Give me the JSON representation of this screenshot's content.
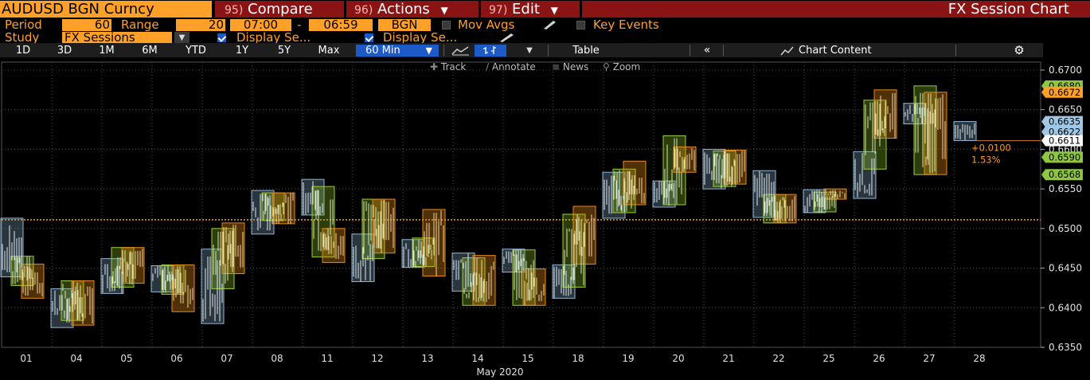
{
  "header": {
    "ticker": "AUDUSD BGN Curncy",
    "compare": {
      "num": "95)",
      "label": "Compare"
    },
    "actions": {
      "num": "96)",
      "label": "Actions"
    },
    "edit": {
      "num": "97)",
      "label": "Edit"
    },
    "title": "FX Session Chart"
  },
  "settings": {
    "period_label": "Period",
    "period_value": "60",
    "range_label": "Range",
    "range_value": "20",
    "time_start": "07:00",
    "time_dash": "-",
    "time_end": "06:59",
    "source": "BGN",
    "mov_avgs_label": "Mov Avgs",
    "key_events_label": "Key Events",
    "study_label": "Study",
    "study_value": "FX Sessions",
    "display_1": "Display Se...",
    "display_2": "Display Se..."
  },
  "range_buttons": [
    "1D",
    "3D",
    "1M",
    "6M",
    "YTD",
    "1Y",
    "5Y",
    "Max"
  ],
  "interval": "60 Min",
  "table_label": "Table",
  "chart_content_label": "Chart Content",
  "tools": {
    "track": "Track",
    "annotate": "Annotate",
    "news": "News",
    "zoom": "Zoom"
  },
  "colors": {
    "accent": "#ffa028",
    "header_red": "#8a1414",
    "active_blue": "#1c5ac8"
  },
  "chart_data": {
    "type": "candlestick-session",
    "title": "",
    "xlabel": "May 2020",
    "ylabel": "",
    "ylim": [
      0.635,
      0.671
    ],
    "y_ticks": [
      "0.6700",
      "0.6650",
      "0.6600",
      "0.6550",
      "0.6500",
      "0.6450",
      "0.6400",
      "0.6350"
    ],
    "x_ticks": [
      "01",
      "04",
      "05",
      "06",
      "07",
      "08",
      "11",
      "12",
      "13",
      "14",
      "15",
      "18",
      "19",
      "20",
      "21",
      "22",
      "25",
      "26",
      "27",
      "28"
    ],
    "reference_level": 0.6511,
    "last_price": "0.6611",
    "change": "+0.0100",
    "change_pct": "1.53%",
    "price_labels": [
      {
        "value": "0.6680",
        "kind": "green"
      },
      {
        "value": "0.6672",
        "kind": "orange"
      },
      {
        "value": "0.6635",
        "kind": "blue"
      },
      {
        "value": "0.6622",
        "kind": "blue"
      },
      {
        "value": "0.6611",
        "kind": "white"
      },
      {
        "value": "0.6590",
        "kind": "green"
      },
      {
        "value": "0.6568",
        "kind": "green"
      }
    ],
    "sessions": [
      {
        "day": "01",
        "s": "asia",
        "hi": 0.6513,
        "lo": 0.6439
      },
      {
        "day": "01",
        "s": "europe",
        "hi": 0.6465,
        "lo": 0.6428
      },
      {
        "day": "01",
        "s": "us",
        "hi": 0.6455,
        "lo": 0.6412
      },
      {
        "day": "04",
        "s": "asia",
        "hi": 0.6424,
        "lo": 0.6375
      },
      {
        "day": "04",
        "s": "europe",
        "hi": 0.6434,
        "lo": 0.6384
      },
      {
        "day": "04",
        "s": "us",
        "hi": 0.6434,
        "lo": 0.6378
      },
      {
        "day": "05",
        "s": "asia",
        "hi": 0.6462,
        "lo": 0.6418
      },
      {
        "day": "05",
        "s": "europe",
        "hi": 0.6476,
        "lo": 0.6426
      },
      {
        "day": "05",
        "s": "us",
        "hi": 0.6476,
        "lo": 0.6431
      },
      {
        "day": "06",
        "s": "asia",
        "hi": 0.6453,
        "lo": 0.642
      },
      {
        "day": "06",
        "s": "europe",
        "hi": 0.6454,
        "lo": 0.6417
      },
      {
        "day": "06",
        "s": "us",
        "hi": 0.6454,
        "lo": 0.6395
      },
      {
        "day": "07",
        "s": "asia",
        "hi": 0.6474,
        "lo": 0.638
      },
      {
        "day": "07",
        "s": "europe",
        "hi": 0.65,
        "lo": 0.6424
      },
      {
        "day": "07",
        "s": "us",
        "hi": 0.6507,
        "lo": 0.6443
      },
      {
        "day": "08",
        "s": "asia",
        "hi": 0.6548,
        "lo": 0.6493
      },
      {
        "day": "08",
        "s": "europe",
        "hi": 0.6545,
        "lo": 0.651
      },
      {
        "day": "08",
        "s": "us",
        "hi": 0.6545,
        "lo": 0.6506
      },
      {
        "day": "11",
        "s": "asia",
        "hi": 0.6562,
        "lo": 0.6517
      },
      {
        "day": "11",
        "s": "europe",
        "hi": 0.6553,
        "lo": 0.6464
      },
      {
        "day": "11",
        "s": "us",
        "hi": 0.65,
        "lo": 0.6457
      },
      {
        "day": "12",
        "s": "asia",
        "hi": 0.6493,
        "lo": 0.6433
      },
      {
        "day": "12",
        "s": "europe",
        "hi": 0.6537,
        "lo": 0.6462
      },
      {
        "day": "12",
        "s": "us",
        "hi": 0.6537,
        "lo": 0.6469
      },
      {
        "day": "13",
        "s": "asia",
        "hi": 0.6486,
        "lo": 0.6451
      },
      {
        "day": "13",
        "s": "europe",
        "hi": 0.6488,
        "lo": 0.6452
      },
      {
        "day": "13",
        "s": "us",
        "hi": 0.6524,
        "lo": 0.644
      },
      {
        "day": "14",
        "s": "asia",
        "hi": 0.6469,
        "lo": 0.6421
      },
      {
        "day": "14",
        "s": "europe",
        "hi": 0.6463,
        "lo": 0.6403
      },
      {
        "day": "14",
        "s": "us",
        "hi": 0.6466,
        "lo": 0.6403
      },
      {
        "day": "15",
        "s": "asia",
        "hi": 0.6474,
        "lo": 0.6445
      },
      {
        "day": "15",
        "s": "europe",
        "hi": 0.6473,
        "lo": 0.6403
      },
      {
        "day": "15",
        "s": "us",
        "hi": 0.6449,
        "lo": 0.6403
      },
      {
        "day": "18",
        "s": "asia",
        "hi": 0.6454,
        "lo": 0.6412
      },
      {
        "day": "18",
        "s": "europe",
        "hi": 0.6518,
        "lo": 0.6426
      },
      {
        "day": "18",
        "s": "us",
        "hi": 0.6528,
        "lo": 0.6455
      },
      {
        "day": "19",
        "s": "asia",
        "hi": 0.6571,
        "lo": 0.6513
      },
      {
        "day": "19",
        "s": "europe",
        "hi": 0.6575,
        "lo": 0.652
      },
      {
        "day": "19",
        "s": "us",
        "hi": 0.6585,
        "lo": 0.653
      },
      {
        "day": "20",
        "s": "asia",
        "hi": 0.656,
        "lo": 0.6527
      },
      {
        "day": "20",
        "s": "europe",
        "hi": 0.6617,
        "lo": 0.653
      },
      {
        "day": "20",
        "s": "us",
        "hi": 0.6603,
        "lo": 0.6571
      },
      {
        "day": "21",
        "s": "asia",
        "hi": 0.66,
        "lo": 0.655
      },
      {
        "day": "21",
        "s": "europe",
        "hi": 0.6598,
        "lo": 0.6553
      },
      {
        "day": "21",
        "s": "us",
        "hi": 0.6599,
        "lo": 0.6556
      },
      {
        "day": "22",
        "s": "asia",
        "hi": 0.6573,
        "lo": 0.6514
      },
      {
        "day": "22",
        "s": "europe",
        "hi": 0.6543,
        "lo": 0.6507
      },
      {
        "day": "22",
        "s": "us",
        "hi": 0.6543,
        "lo": 0.6507
      },
      {
        "day": "25",
        "s": "asia",
        "hi": 0.6549,
        "lo": 0.652
      },
      {
        "day": "25",
        "s": "europe",
        "hi": 0.6546,
        "lo": 0.6521
      },
      {
        "day": "25",
        "s": "us",
        "hi": 0.655,
        "lo": 0.6537
      },
      {
        "day": "26",
        "s": "asia",
        "hi": 0.6597,
        "lo": 0.6538
      },
      {
        "day": "26",
        "s": "europe",
        "hi": 0.6662,
        "lo": 0.6575
      },
      {
        "day": "26",
        "s": "us",
        "hi": 0.6675,
        "lo": 0.6614
      },
      {
        "day": "27",
        "s": "asia",
        "hi": 0.6658,
        "lo": 0.6632
      },
      {
        "day": "27",
        "s": "europe",
        "hi": 0.668,
        "lo": 0.6568
      },
      {
        "day": "27",
        "s": "us",
        "hi": 0.6672,
        "lo": 0.6568
      },
      {
        "day": "28",
        "s": "asia",
        "hi": 0.6635,
        "lo": 0.6611
      }
    ]
  }
}
